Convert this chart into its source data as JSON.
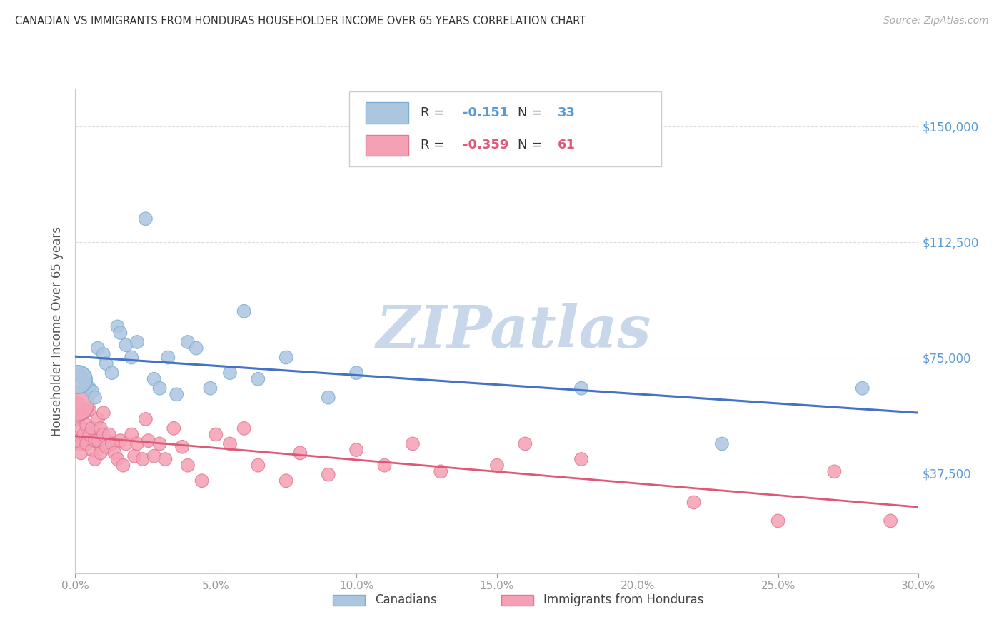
{
  "title": "CANADIAN VS IMMIGRANTS FROM HONDURAS HOUSEHOLDER INCOME OVER 65 YEARS CORRELATION CHART",
  "source": "Source: ZipAtlas.com",
  "ylabel": "Householder Income Over 65 years",
  "ytick_values": [
    37500,
    75000,
    112500,
    150000
  ],
  "ytick_labels": [
    "$37,500",
    "$75,000",
    "$112,500",
    "$150,000"
  ],
  "ymin": 5000,
  "ymax": 162000,
  "xmin": 0.0,
  "xmax": 0.3,
  "xticks": [
    0.0,
    0.05,
    0.1,
    0.15,
    0.2,
    0.25,
    0.3
  ],
  "canadians_R": "-0.151",
  "canadians_N": "33",
  "hondurans_R": "-0.359",
  "hondurans_N": "61",
  "canadians_x": [
    0.001,
    0.002,
    0.003,
    0.004,
    0.005,
    0.006,
    0.007,
    0.008,
    0.01,
    0.011,
    0.013,
    0.015,
    0.016,
    0.018,
    0.02,
    0.022,
    0.025,
    0.028,
    0.03,
    0.033,
    0.036,
    0.04,
    0.043,
    0.048,
    0.055,
    0.06,
    0.065,
    0.075,
    0.09,
    0.1,
    0.18,
    0.23,
    0.28
  ],
  "canadians_y": [
    70000,
    69000,
    68000,
    66000,
    65000,
    64000,
    62000,
    78000,
    76000,
    73000,
    70000,
    85000,
    83000,
    79000,
    75000,
    80000,
    120000,
    68000,
    65000,
    75000,
    63000,
    80000,
    78000,
    65000,
    70000,
    90000,
    68000,
    75000,
    62000,
    70000,
    65000,
    47000,
    65000
  ],
  "canadians_sizes": [
    200,
    180,
    180,
    180,
    180,
    180,
    180,
    180,
    180,
    180,
    180,
    180,
    180,
    180,
    180,
    180,
    180,
    180,
    180,
    180,
    180,
    180,
    180,
    180,
    180,
    180,
    180,
    180,
    180,
    180,
    180,
    180,
    180
  ],
  "hondurans_x": [
    0.001,
    0.001,
    0.001,
    0.002,
    0.002,
    0.002,
    0.003,
    0.003,
    0.004,
    0.004,
    0.005,
    0.005,
    0.006,
    0.006,
    0.007,
    0.007,
    0.008,
    0.008,
    0.009,
    0.009,
    0.01,
    0.01,
    0.011,
    0.012,
    0.013,
    0.014,
    0.015,
    0.016,
    0.017,
    0.018,
    0.02,
    0.021,
    0.022,
    0.024,
    0.025,
    0.026,
    0.028,
    0.03,
    0.032,
    0.035,
    0.038,
    0.04,
    0.045,
    0.05,
    0.055,
    0.06,
    0.065,
    0.075,
    0.08,
    0.09,
    0.1,
    0.11,
    0.12,
    0.13,
    0.15,
    0.16,
    0.18,
    0.22,
    0.25,
    0.27,
    0.29
  ],
  "hondurans_y": [
    60000,
    55000,
    48000,
    52000,
    47000,
    44000,
    57000,
    50000,
    53000,
    47000,
    58000,
    50000,
    52000,
    45000,
    48000,
    42000,
    55000,
    48000,
    52000,
    44000,
    57000,
    50000,
    46000,
    50000,
    47000,
    44000,
    42000,
    48000,
    40000,
    47000,
    50000,
    43000,
    47000,
    42000,
    55000,
    48000,
    43000,
    47000,
    42000,
    52000,
    46000,
    40000,
    35000,
    50000,
    47000,
    52000,
    40000,
    35000,
    44000,
    37000,
    45000,
    40000,
    47000,
    38000,
    40000,
    47000,
    42000,
    28000,
    22000,
    38000,
    22000
  ],
  "hondurans_large_x": [
    0.001
  ],
  "hondurans_large_y": [
    60000
  ],
  "hondurans_sizes": [
    180,
    180,
    180,
    180,
    180,
    180,
    180,
    180,
    180,
    180,
    180,
    180,
    180,
    180,
    180,
    180,
    180,
    180,
    180,
    180,
    180,
    180,
    180,
    180,
    180,
    180,
    180,
    180,
    180,
    180,
    180,
    180,
    180,
    180,
    180,
    180,
    180,
    180,
    180,
    180,
    180,
    180,
    180,
    180,
    180,
    180,
    180,
    180,
    180,
    180,
    180,
    180,
    180,
    180,
    180,
    180,
    180,
    180,
    180,
    180,
    180
  ],
  "blue_line_color": "#4472c4",
  "pink_line_color": "#e05878",
  "scatter_blue_face": "#adc6e0",
  "scatter_blue_edge": "#7aafd4",
  "scatter_pink_face": "#f5a0b4",
  "scatter_pink_edge": "#e07890",
  "watermark": "ZIPatlas",
  "watermark_color": "#c8d8ea",
  "title_color": "#333333",
  "axis_value_color": "#5b9bd5",
  "tick_color": "#999999",
  "grid_color": "#dddddd",
  "background_color": "#ffffff",
  "legend_label_blue": "Canadians",
  "legend_label_pink": "Immigrants from Honduras"
}
